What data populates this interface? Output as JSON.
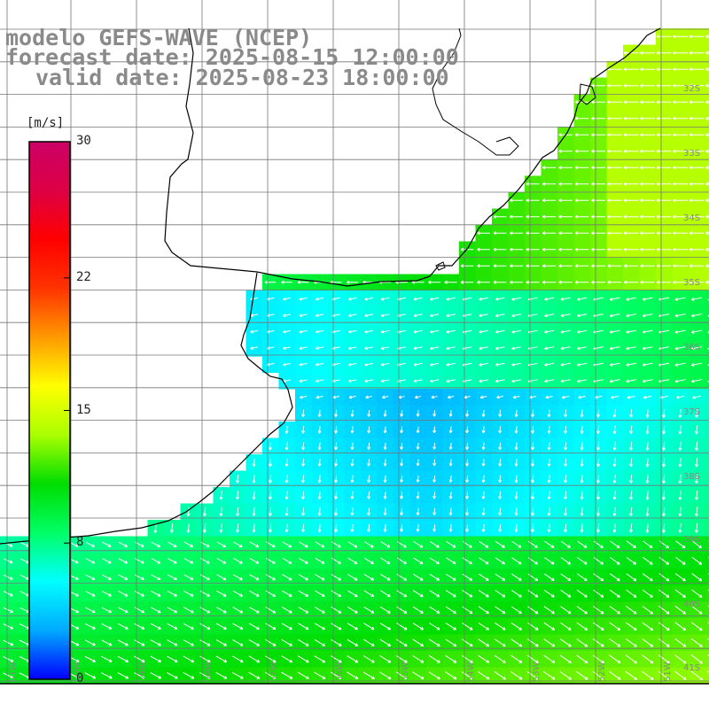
{
  "header": {
    "model": "modelo GEFS-WAVE (NCEP)",
    "forecast_date": "forecast date: 2025-08-15 12:00:00",
    "valid_date": "valid date: 2025-08-23 18:00:00"
  },
  "colorbar": {
    "unit": "[m/s]",
    "min": 0,
    "max": 30,
    "ticks": [
      {
        "value": 30,
        "label": "30"
      },
      {
        "value": 22.4,
        "label": "22"
      },
      {
        "value": 15,
        "label": "15"
      },
      {
        "value": 7.6,
        "label": "8"
      },
      {
        "value": 0,
        "label": "0"
      }
    ],
    "stops": [
      "#0000ff",
      "#00aaff",
      "#00ffff",
      "#00ff66",
      "#00dd00",
      "#aaff00",
      "#ffff00",
      "#ff9900",
      "#ff3300",
      "#ff0000",
      "#dd0044",
      "#cc0066"
    ]
  },
  "grid": {
    "lat_labels": [
      "32S",
      "33S",
      "34S",
      "35S",
      "36S",
      "37S",
      "38S",
      "39S",
      "40S",
      "41S"
    ],
    "lon_labels": [
      "61W",
      "60W",
      "59W",
      "58W",
      "57W",
      "56W",
      "55W",
      "54W",
      "53W",
      "52W",
      "51W"
    ]
  },
  "colors": {
    "land": "#ffffff",
    "coastline": "#000000",
    "grid": "#777777",
    "title": "#8a8a8a",
    "arrow": "#ffffff"
  }
}
